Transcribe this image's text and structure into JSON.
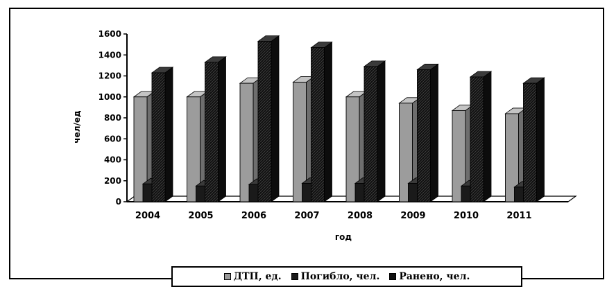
{
  "chart_data": {
    "type": "bar",
    "categories": [
      "2004",
      "2005",
      "2006",
      "2007",
      "2008",
      "2009",
      "2010",
      "2011"
    ],
    "series": [
      {
        "name": "ДТП, ед.",
        "values": [
          1000,
          1000,
          1130,
          1140,
          1000,
          940,
          870,
          840
        ],
        "color": "#9a9a9a"
      },
      {
        "name": "Погибло, чел.",
        "values": [
          170,
          150,
          165,
          175,
          175,
          175,
          150,
          140
        ],
        "color": "#1a1a1a"
      },
      {
        "name": "Ранено, чел.",
        "values": [
          1230,
          1330,
          1530,
          1470,
          1290,
          1260,
          1190,
          1130
        ],
        "color": "#111111"
      }
    ],
    "ylim": [
      0,
      1600
    ],
    "yticks": [
      0,
      200,
      400,
      600,
      800,
      1000,
      1200,
      1400,
      1600
    ],
    "xlabel": "год",
    "ylabel": "чел/ед",
    "legend_position": "bottom",
    "grid": false,
    "three_d": true
  }
}
